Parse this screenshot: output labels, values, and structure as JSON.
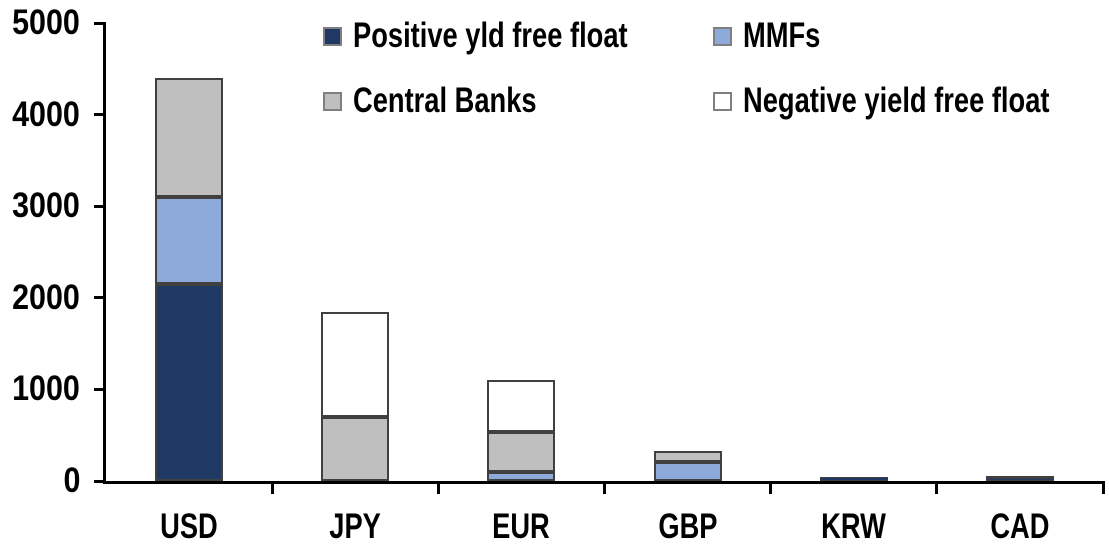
{
  "chart_data": {
    "type": "bar",
    "stacked": true,
    "title": "",
    "xlabel": "",
    "ylabel": "",
    "categories": [
      "USD",
      "JPY",
      "EUR",
      "GBP",
      "KRW",
      "CAD"
    ],
    "series": [
      {
        "name": "Positive yld free float",
        "color": "#1F3864",
        "values": [
          2150,
          0,
          0,
          0,
          45,
          30
        ]
      },
      {
        "name": "MMFs",
        "color": "#8EAADB",
        "values": [
          950,
          0,
          100,
          210,
          0,
          0
        ]
      },
      {
        "name": "Central Banks",
        "color": "#BFBFBF",
        "values": [
          1300,
          700,
          430,
          120,
          0,
          30
        ]
      },
      {
        "name": "Negative yield free float",
        "color": "#FFFFFF",
        "values": [
          0,
          1140,
          570,
          0,
          0,
          0
        ]
      }
    ],
    "totals": {
      "USD": 4400,
      "JPY": 1840,
      "EUR": 1100,
      "GBP": 330,
      "KRW": 45,
      "CAD": 60
    },
    "ylim": [
      0,
      5000
    ],
    "yticks": [
      0,
      1000,
      2000,
      3000,
      4000,
      5000
    ],
    "grid": false,
    "legend_position": "top",
    "colors": {
      "segment_border": "#404040",
      "axis": "#000000",
      "text": "#000000",
      "background": "#FFFFFF"
    }
  }
}
